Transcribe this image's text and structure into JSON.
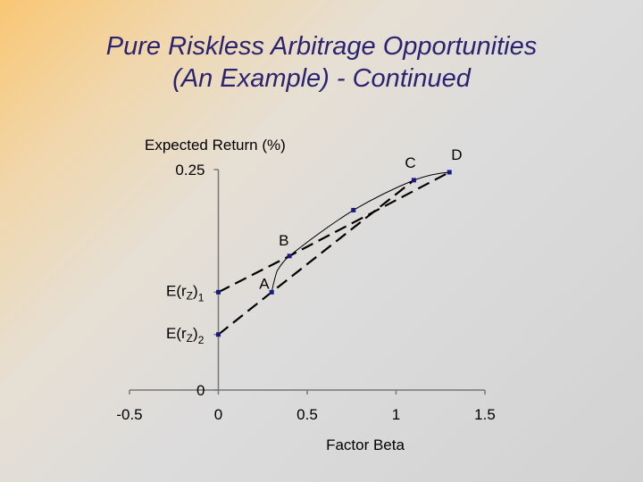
{
  "title_lines": [
    "Pure Riskless Arbitrage Opportunities",
    "(An Example) - Continued"
  ],
  "chart_data": {
    "type": "line",
    "ylabel": "Expected Return (%)",
    "xlabel": "Factor Beta",
    "xlim": [
      -0.5,
      1.5
    ],
    "ylim": [
      0,
      0.25
    ],
    "x_ticks": [
      "-0.5",
      "0",
      "0.5",
      "1",
      "1.5"
    ],
    "x_tick_values": [
      -0.5,
      0,
      0.5,
      1,
      1.5
    ],
    "y_ticks": [
      "0.25",
      "0"
    ],
    "y_tick_values": [
      0.25,
      0
    ],
    "y_axis_marks": [
      {
        "label_main": "E(r",
        "label_sub": "Z",
        "label_post": ")",
        "label_index": "1",
        "value": 0.111
      },
      {
        "label_main": "E(r",
        "label_sub": "Z",
        "label_post": ")",
        "label_index": "2",
        "value": 0.063
      }
    ],
    "points": [
      {
        "name": "A",
        "x": 0.3,
        "y": 0.111
      },
      {
        "name": "B",
        "x": 0.4,
        "y": 0.152
      },
      {
        "name": "",
        "x": 0.76,
        "y": 0.204
      },
      {
        "name": "C",
        "x": 1.1,
        "y": 0.238
      },
      {
        "name": "D",
        "x": 1.3,
        "y": 0.247
      }
    ],
    "curve": {
      "x": [
        0.3,
        0.33,
        0.4,
        0.76,
        1.1,
        1.3
      ],
      "y": [
        0.111,
        0.135,
        0.152,
        0.204,
        0.238,
        0.247
      ]
    },
    "series": [
      {
        "style": "dashed",
        "x": [
          0,
          0.4,
          1.3
        ],
        "y": [
          0.111,
          0.152,
          0.247
        ]
      },
      {
        "style": "dashed",
        "x": [
          0,
          0.3,
          1.1
        ],
        "y": [
          0.063,
          0.111,
          0.238
        ]
      }
    ],
    "colors": {
      "title": "#2b2370",
      "marker": "#1a1a80",
      "line": "#000000"
    }
  }
}
